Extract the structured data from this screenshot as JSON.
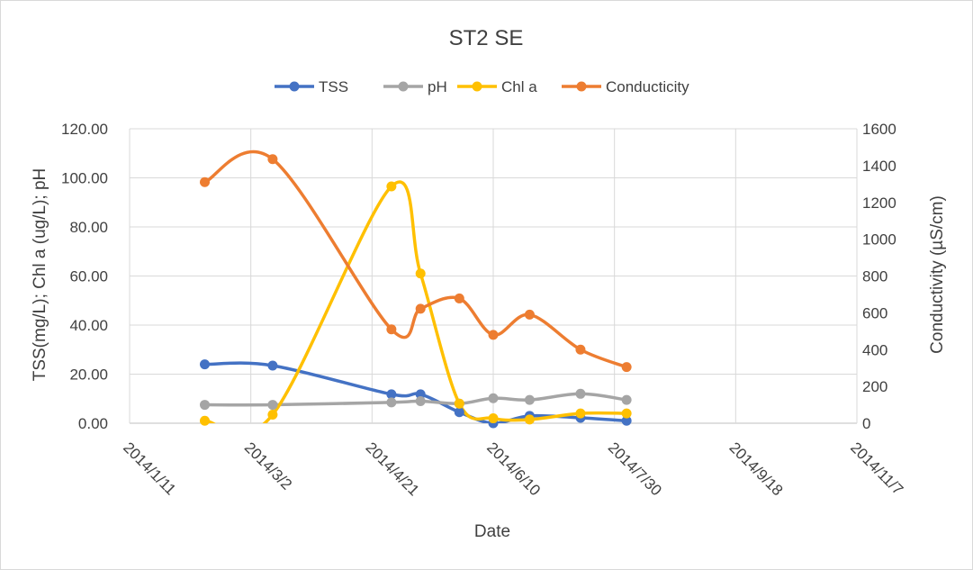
{
  "chart_data": {
    "type": "line",
    "title": "ST2 SE",
    "xlabel": "Date",
    "ylabel": "TSS(mg/L); Chl a (ug/L); pH",
    "y2label": "Conductivity  (µS/cm)",
    "legend_position": "top",
    "grid": true,
    "x_axis": {
      "min": "2014-01-11",
      "max": "2014-11-07",
      "ticks": [
        "2014/1/11",
        "2014/3/2",
        "2014/4/21",
        "2014/6/10",
        "2014/7/30",
        "2014/9/18",
        "2014/11/7"
      ]
    },
    "y_axis": {
      "min": 0,
      "max": 120,
      "step": 20,
      "ticks": [
        "0.00",
        "20.00",
        "40.00",
        "60.00",
        "80.00",
        "100.00",
        "120.00"
      ]
    },
    "y2_axis": {
      "min": 0,
      "max": 1600,
      "step": 200,
      "ticks": [
        "0",
        "200",
        "400",
        "600",
        "800",
        "1000",
        "1200",
        "1400",
        "1600"
      ]
    },
    "series": [
      {
        "name": "TSS",
        "color": "#4472C4",
        "axis": "left",
        "points": [
          {
            "x": "2014-02-11",
            "y": 24.0
          },
          {
            "x": "2014-03-11",
            "y": 23.5
          },
          {
            "x": "2014-04-29",
            "y": 11.8
          },
          {
            "x": "2014-05-11",
            "y": 11.8
          },
          {
            "x": "2014-05-27",
            "y": 4.5
          },
          {
            "x": "2014-06-10",
            "y": 0.0
          },
          {
            "x": "2014-06-25",
            "y": 3.0
          },
          {
            "x": "2014-07-16",
            "y": 2.2
          },
          {
            "x": "2014-08-04",
            "y": 1.0
          }
        ]
      },
      {
        "name": "pH",
        "color": "#A5A5A5",
        "axis": "left",
        "points": [
          {
            "x": "2014-02-11",
            "y": 7.5
          },
          {
            "x": "2014-03-11",
            "y": 7.5
          },
          {
            "x": "2014-04-29",
            "y": 8.5
          },
          {
            "x": "2014-05-11",
            "y": 9.0
          },
          {
            "x": "2014-05-27",
            "y": 8.0
          },
          {
            "x": "2014-06-10",
            "y": 10.2
          },
          {
            "x": "2014-06-25",
            "y": 9.5
          },
          {
            "x": "2014-07-16",
            "y": 12.0
          },
          {
            "x": "2014-08-04",
            "y": 9.5
          }
        ]
      },
      {
        "name": "Chl a",
        "color": "#FFC000",
        "axis": "left",
        "points": [
          {
            "x": "2014-02-11",
            "y": 1.0
          },
          {
            "x": "2014-03-11",
            "y": 3.5
          },
          {
            "x": "2014-04-29",
            "y": 96.5
          },
          {
            "x": "2014-05-11",
            "y": 61.0
          },
          {
            "x": "2014-05-27",
            "y": 8.0
          },
          {
            "x": "2014-06-10",
            "y": 2.0
          },
          {
            "x": "2014-06-25",
            "y": 1.5
          },
          {
            "x": "2014-07-16",
            "y": 4.0
          },
          {
            "x": "2014-08-04",
            "y": 4.0
          }
        ]
      },
      {
        "name": "Conducticity",
        "color": "#ED7D31",
        "axis": "right",
        "points": [
          {
            "x": "2014-02-11",
            "y": 1310
          },
          {
            "x": "2014-03-11",
            "y": 1435
          },
          {
            "x": "2014-04-29",
            "y": 510
          },
          {
            "x": "2014-05-11",
            "y": 622
          },
          {
            "x": "2014-05-27",
            "y": 678
          },
          {
            "x": "2014-06-10",
            "y": 480
          },
          {
            "x": "2014-06-25",
            "y": 590
          },
          {
            "x": "2014-07-16",
            "y": 400
          },
          {
            "x": "2014-08-04",
            "y": 305
          }
        ]
      }
    ]
  }
}
